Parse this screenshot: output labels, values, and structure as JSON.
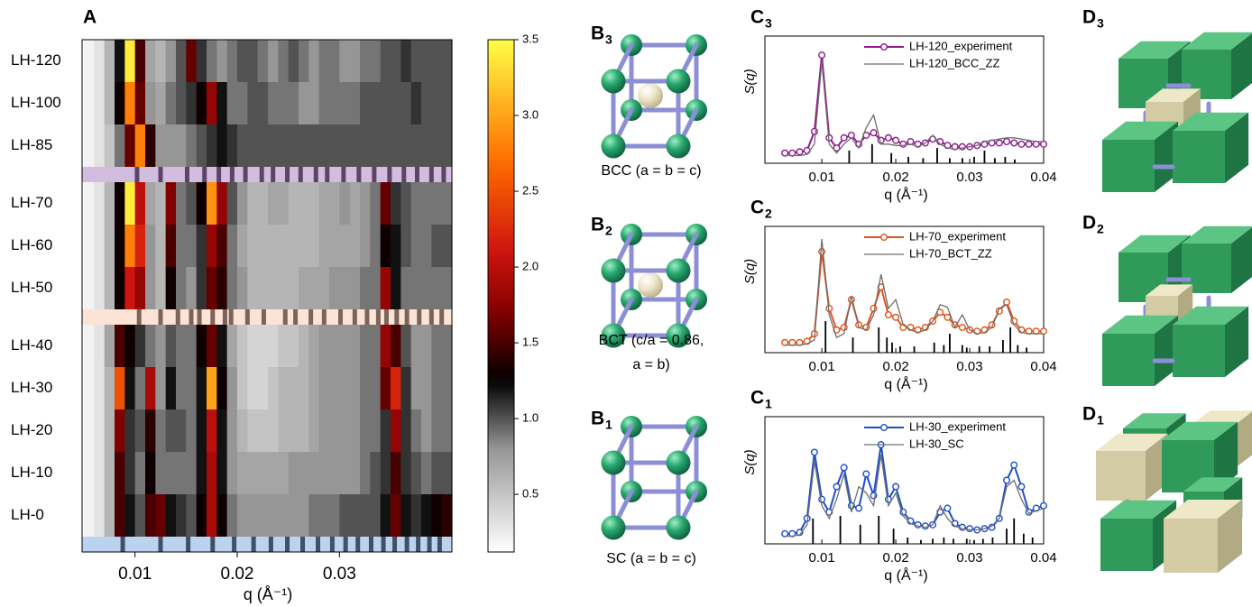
{
  "chart_data": [
    {
      "type": "heatmap",
      "label": "A",
      "categories": [
        "LH-120",
        "LH-100",
        "LH-85",
        "LH-70",
        "LH-60",
        "LH-50",
        "LH-40",
        "LH-30",
        "LH-20",
        "LH-10",
        "LH-0"
      ],
      "bins": [
        0.005,
        0.006,
        0.007,
        0.008,
        0.009,
        0.01,
        0.011,
        0.012,
        0.013,
        0.014,
        0.015,
        0.016,
        0.017,
        0.018,
        0.019,
        0.02,
        0.021,
        0.022,
        0.023,
        0.024,
        0.025,
        0.026,
        0.027,
        0.028,
        0.029,
        0.03,
        0.031,
        0.032,
        0.033,
        0.034,
        0.035,
        0.036,
        0.037,
        0.038,
        0.039,
        0.04,
        0.041
      ],
      "values": [
        [
          0.2,
          0.3,
          0.6,
          1.2,
          3.4,
          1.5,
          0.7,
          0.6,
          0.8,
          1.0,
          1.6,
          1.1,
          0.9,
          0.8,
          0.9,
          1.0,
          1.0,
          0.9,
          0.8,
          0.9,
          1.0,
          0.9,
          0.8,
          0.9,
          0.9,
          0.8,
          0.8,
          0.9,
          0.9,
          1.0,
          1.0,
          1.1,
          1.0,
          1.0,
          1.0,
          1.0
        ],
        [
          0.2,
          0.3,
          0.6,
          1.3,
          2.8,
          1.6,
          0.8,
          0.7,
          0.9,
          1.0,
          1.1,
          1.3,
          1.8,
          1.2,
          0.9,
          0.9,
          1.0,
          1.0,
          0.9,
          0.9,
          0.9,
          0.8,
          0.8,
          0.9,
          0.9,
          0.9,
          0.9,
          1.0,
          1.0,
          1.0,
          1.0,
          1.0,
          1.1,
          1.0,
          1.0,
          1.0
        ],
        [
          0.2,
          0.3,
          0.5,
          0.9,
          1.6,
          2.8,
          1.4,
          0.8,
          0.8,
          0.8,
          0.9,
          1.0,
          1.1,
          1.2,
          1.1,
          1.0,
          1.0,
          1.0,
          1.0,
          1.0,
          1.0,
          1.0,
          1.0,
          1.0,
          1.0,
          1.0,
          1.0,
          1.0,
          1.0,
          1.0,
          1.0,
          1.0,
          1.0,
          1.0,
          1.0,
          1.0
        ],
        [
          0.2,
          0.3,
          0.6,
          1.3,
          3.4,
          2.0,
          0.7,
          0.6,
          1.7,
          0.9,
          1.0,
          1.3,
          2.9,
          1.8,
          1.0,
          0.8,
          0.6,
          0.6,
          0.7,
          0.7,
          0.6,
          0.6,
          0.6,
          0.7,
          0.7,
          0.8,
          0.7,
          0.8,
          0.9,
          1.6,
          1.1,
          1.0,
          0.9,
          0.9,
          0.9,
          0.9
        ],
        [
          0.2,
          0.3,
          0.6,
          1.3,
          2.8,
          2.2,
          0.8,
          0.6,
          1.5,
          0.9,
          0.9,
          1.1,
          1.8,
          1.5,
          0.9,
          0.7,
          0.6,
          0.6,
          0.6,
          0.6,
          0.6,
          0.6,
          0.6,
          0.7,
          0.7,
          0.7,
          0.7,
          0.8,
          0.9,
          1.3,
          1.2,
          1.0,
          0.9,
          0.9,
          1.0,
          1.0
        ],
        [
          0.2,
          0.3,
          0.6,
          1.3,
          2.1,
          1.8,
          0.8,
          0.6,
          1.3,
          0.9,
          0.8,
          1.1,
          1.6,
          1.4,
          0.9,
          0.8,
          0.6,
          0.6,
          0.6,
          0.6,
          0.6,
          0.7,
          0.7,
          0.7,
          0.8,
          0.8,
          0.8,
          0.9,
          0.9,
          1.8,
          1.2,
          0.9,
          0.9,
          0.9,
          0.9,
          0.9
        ],
        [
          0.2,
          0.3,
          0.7,
          1.5,
          1.3,
          1.1,
          0.9,
          0.8,
          1.0,
          0.9,
          0.9,
          1.3,
          1.6,
          1.2,
          0.7,
          0.5,
          0.4,
          0.4,
          0.4,
          0.5,
          0.5,
          0.6,
          0.7,
          0.8,
          0.8,
          0.8,
          0.8,
          0.9,
          0.9,
          1.8,
          1.5,
          1.0,
          0.8,
          0.8,
          0.9,
          0.9
        ],
        [
          0.2,
          0.3,
          0.6,
          2.5,
          1.2,
          0.9,
          1.9,
          0.8,
          1.2,
          0.9,
          0.9,
          1.2,
          3.0,
          1.3,
          0.8,
          0.5,
          0.4,
          0.4,
          0.5,
          0.6,
          0.6,
          0.6,
          0.7,
          0.8,
          0.8,
          0.8,
          0.8,
          0.9,
          0.9,
          1.6,
          2.2,
          1.1,
          0.8,
          0.8,
          0.9,
          0.9
        ],
        [
          0.2,
          0.3,
          0.6,
          1.7,
          1.1,
          1.0,
          1.4,
          0.9,
          1.0,
          1.0,
          0.9,
          1.2,
          2.0,
          1.2,
          0.8,
          0.6,
          0.5,
          0.5,
          0.5,
          0.6,
          0.6,
          0.6,
          0.7,
          0.8,
          0.8,
          0.8,
          0.8,
          0.9,
          0.9,
          1.1,
          1.8,
          1.1,
          0.9,
          0.8,
          0.9,
          0.9
        ],
        [
          0.2,
          0.3,
          0.6,
          1.5,
          1.1,
          0.9,
          1.3,
          0.9,
          0.9,
          0.9,
          0.9,
          1.2,
          1.9,
          1.2,
          0.8,
          0.7,
          0.7,
          0.7,
          0.7,
          0.7,
          0.8,
          0.8,
          0.8,
          0.8,
          0.8,
          0.8,
          0.8,
          0.9,
          1.0,
          1.1,
          1.5,
          1.1,
          1.0,
          0.9,
          1.0,
          1.0
        ],
        [
          0.2,
          0.3,
          0.6,
          1.5,
          1.2,
          1.0,
          1.5,
          1.6,
          1.2,
          1.1,
          1.0,
          1.3,
          1.9,
          1.3,
          0.9,
          0.8,
          0.8,
          0.8,
          0.8,
          0.8,
          0.8,
          0.8,
          0.9,
          0.9,
          0.9,
          1.0,
          1.0,
          1.0,
          1.0,
          1.2,
          1.6,
          1.2,
          1.1,
          1.2,
          1.3,
          1.4
        ]
      ],
      "xlim": [
        0.005,
        0.041
      ],
      "xticks": [
        0.01,
        0.02,
        0.03
      ],
      "xlabel": "q (Å⁻¹)",
      "stripes": [
        {
          "color": "#d2bde0",
          "tick_color": "#5b4468",
          "positions": [
            0.0102,
            0.0125,
            0.0151,
            0.0168,
            0.0182,
            0.0195,
            0.0208,
            0.0224,
            0.0235,
            0.0249,
            0.0262,
            0.0277,
            0.0288,
            0.0304,
            0.0319,
            0.0334,
            0.0349,
            0.0363,
            0.0376,
            0.039,
            0.0402
          ]
        },
        {
          "color": "#fbe3d6",
          "tick_color": "#7d645a",
          "positions": [
            0.0104,
            0.0125,
            0.0142,
            0.0155,
            0.0163,
            0.0176,
            0.0188,
            0.0194,
            0.021,
            0.0226,
            0.0247,
            0.0257,
            0.0272,
            0.0285,
            0.0301,
            0.0315,
            0.0327,
            0.0338,
            0.0346,
            0.0356,
            0.0366,
            0.0378,
            0.039,
            0.04
          ]
        },
        {
          "color": "#bcd3ef",
          "tick_color": "#3f5068",
          "positions": [
            0.0088,
            0.0125,
            0.0152,
            0.0176,
            0.0197,
            0.0216,
            0.0233,
            0.0249,
            0.0264,
            0.0279,
            0.0293,
            0.0306,
            0.0318,
            0.0331,
            0.0343,
            0.0354,
            0.0366,
            0.0377,
            0.0388,
            0.0398
          ]
        }
      ],
      "colorbar": {
        "ylim": [
          0.12,
          3.5
        ],
        "yticks": [
          0.5,
          {
            "value": 1,
            "label": "1.0"
          },
          1.5,
          {
            "value": 2,
            "label": "2.0"
          },
          2.5,
          {
            "value": 3,
            "label": "3.0"
          },
          3.5
        ]
      }
    },
    {
      "type": "line",
      "label": {
        "letter": "C",
        "sub": "3"
      },
      "xlabel": "q (Å⁻¹)",
      "ylabel": "S(q)",
      "xlim": [
        0.0023,
        0.04
      ],
      "xticks": [
        0.01,
        0.02,
        0.03,
        0.04
      ],
      "ylim": [
        0,
        1
      ],
      "x": [
        0.005,
        0.006,
        0.007,
        0.008,
        0.009,
        0.01,
        0.011,
        0.012,
        0.013,
        0.014,
        0.015,
        0.016,
        0.017,
        0.018,
        0.019,
        0.02,
        0.021,
        0.022,
        0.023,
        0.024,
        0.025,
        0.026,
        0.027,
        0.028,
        0.029,
        0.03,
        0.031,
        0.032,
        0.033,
        0.034,
        0.035,
        0.036,
        0.037,
        0.038,
        0.039,
        0.04
      ],
      "series": [
        {
          "name": "LH-120_experiment",
          "color": "#8e1a8e",
          "marker": "circle",
          "values": [
            0.08,
            0.08,
            0.09,
            0.1,
            0.25,
            0.85,
            0.2,
            0.12,
            0.2,
            0.22,
            0.15,
            0.22,
            0.24,
            0.18,
            0.2,
            0.18,
            0.15,
            0.17,
            0.15,
            0.16,
            0.19,
            0.17,
            0.14,
            0.13,
            0.13,
            0.13,
            0.14,
            0.15,
            0.16,
            0.16,
            0.17,
            0.16,
            0.15,
            0.15,
            0.15,
            0.15
          ]
        },
        {
          "name": "LH-120_BCC_ZZ",
          "color": "#6e6e6e",
          "values": [
            0.06,
            0.06,
            0.06,
            0.07,
            0.15,
            0.8,
            0.15,
            0.08,
            0.15,
            0.2,
            0.12,
            0.28,
            0.38,
            0.15,
            0.15,
            0.14,
            0.14,
            0.15,
            0.13,
            0.16,
            0.22,
            0.15,
            0.12,
            0.11,
            0.12,
            0.13,
            0.14,
            0.17,
            0.18,
            0.19,
            0.2,
            0.2,
            0.19,
            0.18,
            0.17,
            0.17
          ]
        }
      ],
      "sticks": {
        "x": [
          0.0137,
          0.0168,
          0.0194,
          0.0217,
          0.0237,
          0.0256,
          0.0273,
          0.029,
          0.0306,
          0.032,
          0.0334,
          0.0348,
          0.0361
        ],
        "values": [
          0.1,
          0.15,
          0.08,
          0.05,
          0.04,
          0.12,
          0.04,
          0.04,
          0.05,
          0.1,
          0.04,
          0.05,
          0.03
        ]
      }
    },
    {
      "type": "line",
      "label": {
        "letter": "C",
        "sub": "2"
      },
      "xlabel": "q (Å⁻¹)",
      "ylabel": "S(q)",
      "xlim": [
        0.0023,
        0.04
      ],
      "xticks": [
        0.01,
        0.02,
        0.03,
        0.04
      ],
      "ylim": [
        0,
        1
      ],
      "x": [
        0.005,
        0.006,
        0.007,
        0.008,
        0.009,
        0.01,
        0.011,
        0.012,
        0.013,
        0.014,
        0.015,
        0.016,
        0.017,
        0.018,
        0.019,
        0.02,
        0.021,
        0.022,
        0.023,
        0.024,
        0.025,
        0.026,
        0.027,
        0.028,
        0.029,
        0.03,
        0.031,
        0.032,
        0.033,
        0.034,
        0.035,
        0.036,
        0.037,
        0.038,
        0.039,
        0.04
      ],
      "series": [
        {
          "name": "LH-70_experiment",
          "color": "#e0541c",
          "marker": "circle",
          "values": [
            0.08,
            0.08,
            0.08,
            0.09,
            0.15,
            0.8,
            0.35,
            0.18,
            0.2,
            0.42,
            0.22,
            0.2,
            0.35,
            0.52,
            0.3,
            0.28,
            0.2,
            0.2,
            0.18,
            0.2,
            0.25,
            0.32,
            0.28,
            0.22,
            0.2,
            0.18,
            0.17,
            0.18,
            0.22,
            0.33,
            0.4,
            0.25,
            0.18,
            0.17,
            0.17,
            0.17
          ]
        },
        {
          "name": "LH-70_BCT_ZZ",
          "color": "#6e6e6e",
          "values": [
            0.06,
            0.06,
            0.06,
            0.07,
            0.1,
            0.9,
            0.3,
            0.12,
            0.15,
            0.45,
            0.2,
            0.18,
            0.3,
            0.62,
            0.35,
            0.42,
            0.22,
            0.18,
            0.16,
            0.18,
            0.25,
            0.38,
            0.36,
            0.2,
            0.3,
            0.18,
            0.15,
            0.16,
            0.2,
            0.35,
            0.38,
            0.22,
            0.16,
            0.15,
            0.15,
            0.15
          ]
        }
      ],
      "sticks": {
        "x": [
          0.0105,
          0.0142,
          0.0177,
          0.0188,
          0.0195,
          0.0206,
          0.0225,
          0.0252,
          0.0265,
          0.0273,
          0.029,
          0.0296,
          0.0313,
          0.0327,
          0.0345,
          0.0355,
          0.0365,
          0.0377
        ],
        "values": [
          0.25,
          0.12,
          0.2,
          0.12,
          0.08,
          0.05,
          0.05,
          0.08,
          0.06,
          0.15,
          0.06,
          0.04,
          0.05,
          0.05,
          0.1,
          0.2,
          0.06,
          0.04
        ]
      }
    },
    {
      "type": "line",
      "label": {
        "letter": "C",
        "sub": "1"
      },
      "xlabel": "q (Å⁻¹)",
      "ylabel": "S(q)",
      "xlim": [
        0.0023,
        0.04
      ],
      "xticks": [
        0.01,
        0.02,
        0.03,
        0.04
      ],
      "ylim": [
        0,
        1
      ],
      "x": [
        0.005,
        0.006,
        0.007,
        0.008,
        0.009,
        0.01,
        0.011,
        0.012,
        0.013,
        0.014,
        0.015,
        0.016,
        0.017,
        0.018,
        0.019,
        0.02,
        0.021,
        0.022,
        0.023,
        0.024,
        0.025,
        0.026,
        0.027,
        0.028,
        0.029,
        0.03,
        0.031,
        0.032,
        0.033,
        0.034,
        0.035,
        0.036,
        0.037,
        0.038,
        0.039,
        0.04
      ],
      "series": [
        {
          "name": "LH-30_experiment",
          "color": "#1f4fc8",
          "marker": "circle",
          "values": [
            0.08,
            0.08,
            0.09,
            0.2,
            0.72,
            0.35,
            0.25,
            0.45,
            0.6,
            0.3,
            0.28,
            0.55,
            0.38,
            0.78,
            0.35,
            0.45,
            0.25,
            0.18,
            0.15,
            0.14,
            0.15,
            0.25,
            0.28,
            0.16,
            0.13,
            0.12,
            0.11,
            0.12,
            0.13,
            0.2,
            0.5,
            0.62,
            0.45,
            0.25,
            0.28,
            0.3
          ]
        },
        {
          "name": "LH-30_SC",
          "color": "#6e6e6e",
          "values": [
            0.06,
            0.06,
            0.07,
            0.15,
            0.65,
            0.3,
            0.2,
            0.35,
            0.55,
            0.25,
            0.45,
            0.4,
            0.3,
            0.7,
            0.3,
            0.4,
            0.22,
            0.16,
            0.14,
            0.13,
            0.15,
            0.3,
            0.2,
            0.14,
            0.12,
            0.11,
            0.11,
            0.12,
            0.14,
            0.2,
            0.45,
            0.5,
            0.35,
            0.24,
            0.26,
            0.28
          ]
        }
      ],
      "sticks": {
        "x": [
          0.0088,
          0.0125,
          0.0152,
          0.0177,
          0.0197,
          0.0216,
          0.0234,
          0.025,
          0.0265,
          0.0278,
          0.0296,
          0.0306,
          0.0318,
          0.0331,
          0.035,
          0.036,
          0.0373,
          0.0385
        ],
        "values": [
          0.2,
          0.22,
          0.15,
          0.22,
          0.12,
          0.05,
          0.03,
          0.04,
          0.05,
          0.04,
          0.04,
          0.03,
          0.04,
          0.05,
          0.12,
          0.2,
          0.08,
          0.05
        ]
      }
    }
  ],
  "structures": [
    {
      "label": {
        "letter": "B",
        "sub": "3"
      },
      "caption": [
        "BCC (a = b = c)"
      ]
    },
    {
      "label": {
        "letter": "B",
        "sub": "2"
      },
      "caption": [
        "BCT (c/a = 0.86,",
        "a = b)"
      ]
    },
    {
      "label": {
        "letter": "B",
        "sub": "1"
      },
      "caption": [
        "SC (a = b = c)"
      ]
    }
  ],
  "models": [
    {
      "label": {
        "letter": "D",
        "sub": "3"
      }
    },
    {
      "label": {
        "letter": "D",
        "sub": "2"
      }
    },
    {
      "label": {
        "letter": "D",
        "sub": "1"
      }
    }
  ]
}
